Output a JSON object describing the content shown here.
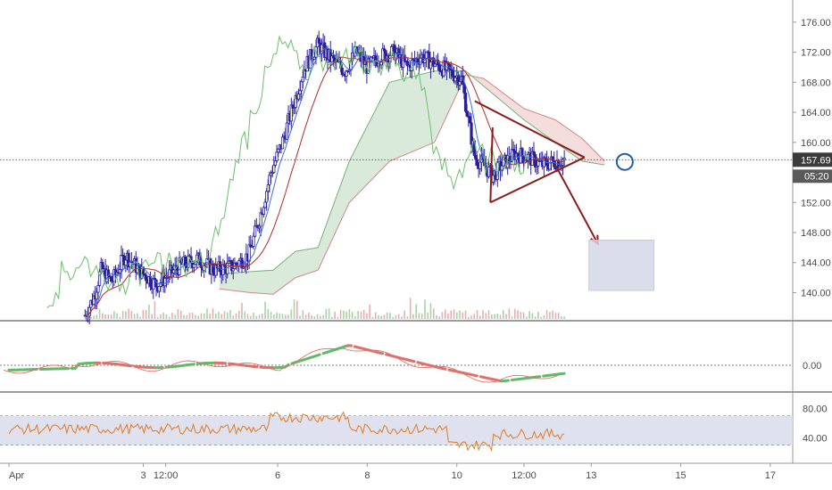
{
  "chart_data": {
    "type": "candlestick",
    "title": "",
    "grid": false,
    "colors": {
      "candle": "#2a1f9b",
      "kijun": "#b22b2b",
      "tenkan": "#3b6fe0",
      "chikou": "#6cbf6c",
      "cloud_bull": "#76b27a",
      "cloud_bear": "#d98484",
      "volume_up": "#7fc27f",
      "volume_down": "#e48a8a",
      "annotation": "#8b1a1a",
      "circle": "#1f5fa8",
      "macd_up": "#5fba6a",
      "macd_down": "#e0706a",
      "rsi": "#e07b22",
      "rsi_band": "#d9dcec",
      "target_box": "#d3d8e6",
      "price_tag": "#3b3b3b",
      "timer_tag": "#5a5a5a"
    },
    "price_axis": {
      "ticks": [
        "176.00",
        "172.00",
        "168.00",
        "164.00",
        "160.00",
        "152.00",
        "148.00",
        "144.00",
        "140.00"
      ],
      "range": [
        136.5,
        178.0
      ]
    },
    "current_price": "157.69",
    "countdown": "05:20",
    "macd_axis": {
      "ticks": [
        "0.00"
      ]
    },
    "rsi_axis": {
      "ticks": [
        "80.00",
        "40.00"
      ],
      "band": [
        30,
        70
      ],
      "range": [
        15,
        100
      ]
    },
    "x_axis": {
      "ticks": [
        {
          "label": "Apr",
          "t": 0.0
        },
        {
          "label": "3",
          "t": 3.0
        },
        {
          "label": "12:00",
          "t": 3.5
        },
        {
          "label": "6",
          "t": 6.0
        },
        {
          "label": "8",
          "t": 8.0
        },
        {
          "label": "10",
          "t": 10.0
        },
        {
          "label": "12:00",
          "t": 11.5
        },
        {
          "label": "13",
          "t": 13.0
        },
        {
          "label": "15",
          "t": 15.0
        },
        {
          "label": "17",
          "t": 17.0
        }
      ],
      "range": [
        -0.2,
        17.5
      ]
    },
    "price_anchors": [
      [
        1.7,
        137.0
      ],
      [
        1.9,
        139.5
      ],
      [
        2.05,
        143.0
      ],
      [
        2.3,
        141.5
      ],
      [
        2.6,
        145.0
      ],
      [
        2.9,
        143.0
      ],
      [
        3.3,
        141.0
      ],
      [
        3.8,
        143.5
      ],
      [
        4.2,
        144.5
      ],
      [
        4.6,
        143.0
      ],
      [
        5.0,
        143.5
      ],
      [
        5.35,
        145.0
      ],
      [
        5.6,
        150.0
      ],
      [
        5.85,
        156.0
      ],
      [
        6.1,
        160.0
      ],
      [
        6.4,
        166.0
      ],
      [
        6.6,
        170.0
      ],
      [
        6.9,
        173.0
      ],
      [
        7.2,
        171.0
      ],
      [
        7.5,
        169.5
      ],
      [
        7.75,
        172.0
      ],
      [
        8.0,
        170.0
      ],
      [
        8.3,
        171.5
      ],
      [
        8.6,
        172.0
      ],
      [
        8.9,
        170.0
      ],
      [
        9.2,
        171.5
      ],
      [
        9.5,
        170.5
      ],
      [
        9.8,
        169.5
      ],
      [
        10.1,
        168.5
      ],
      [
        10.4,
        158.0
      ],
      [
        10.6,
        157.0
      ],
      [
        10.8,
        155.5
      ],
      [
        11.0,
        157.0
      ],
      [
        11.3,
        158.5
      ],
      [
        11.6,
        158.0
      ],
      [
        11.9,
        157.0
      ],
      [
        12.2,
        157.5
      ],
      [
        12.4,
        157.7
      ]
    ],
    "ichimoku": {
      "cloud": [
        [
          4.7,
          142.5,
          140.5
        ],
        [
          5.4,
          142.8,
          140.0
        ],
        [
          5.9,
          143.0,
          139.8
        ],
        [
          6.4,
          145.5,
          142.0
        ],
        [
          6.9,
          146.0,
          143.0
        ],
        [
          7.6,
          157.5,
          152.0
        ],
        [
          8.5,
          168.0,
          157.5
        ],
        [
          9.5,
          169.5,
          160.0
        ],
        [
          10.2,
          169.5,
          169.0
        ],
        [
          10.6,
          167.5,
          168.5
        ],
        [
          11.5,
          163.0,
          164.5
        ],
        [
          12.2,
          160.0,
          163.0
        ],
        [
          12.8,
          157.5,
          160.5
        ],
        [
          13.3,
          157.0,
          157.5
        ]
      ]
    },
    "annotations": {
      "triangle_top": [
        [
          10.4,
          165.5
        ],
        [
          12.85,
          158.0
        ]
      ],
      "triangle_bottom": [
        [
          10.75,
          152.0
        ],
        [
          12.85,
          158.0
        ]
      ],
      "arrow": [
        [
          12.2,
          157.0
        ],
        [
          13.15,
          146.5
        ]
      ],
      "target_box": {
        "x": [
          12.95,
          14.4
        ],
        "y": [
          140.3,
          147.0
        ]
      },
      "reversal_circle": [
        13.75,
        157.4
      ]
    }
  }
}
